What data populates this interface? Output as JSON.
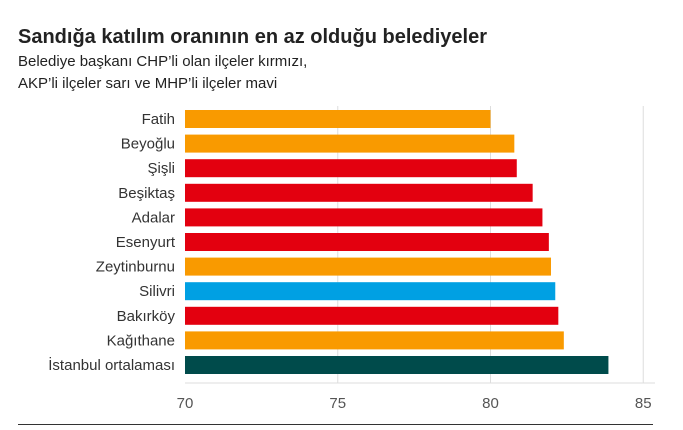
{
  "chart_data": {
    "type": "bar",
    "orientation": "horizontal",
    "title": "Sandığa katılım oranının en az olduğu belediyeler",
    "subtitle": [
      "Belediye başkanı CHP’li olan ilçeler kırmızı,",
      "AKP’li ilçeler sarı ve MHP’li ilçeler mavi"
    ],
    "categories": [
      "Fatih",
      "Beyoğlu",
      "Şişli",
      "Beşiktaş",
      "Adalar",
      "Esenyurt",
      "Zeytinburnu",
      "Silivri",
      "Bakırköy",
      "Kağıthane",
      "İstanbul ortalaması"
    ],
    "values": [
      80.0,
      80.78,
      80.86,
      81.38,
      81.7,
      81.91,
      81.98,
      82.12,
      82.22,
      82.4,
      83.86
    ],
    "colors": [
      "#f99a00",
      "#f99a00",
      "#e3000f",
      "#e3000f",
      "#e3000f",
      "#e3000f",
      "#f99a00",
      "#00a0e3",
      "#e3000f",
      "#f99a00",
      "#004b4b"
    ],
    "xlim": [
      70,
      86
    ],
    "xticks": [
      70,
      75,
      80,
      85
    ],
    "grid": true,
    "xlabel": "",
    "ylabel": ""
  }
}
